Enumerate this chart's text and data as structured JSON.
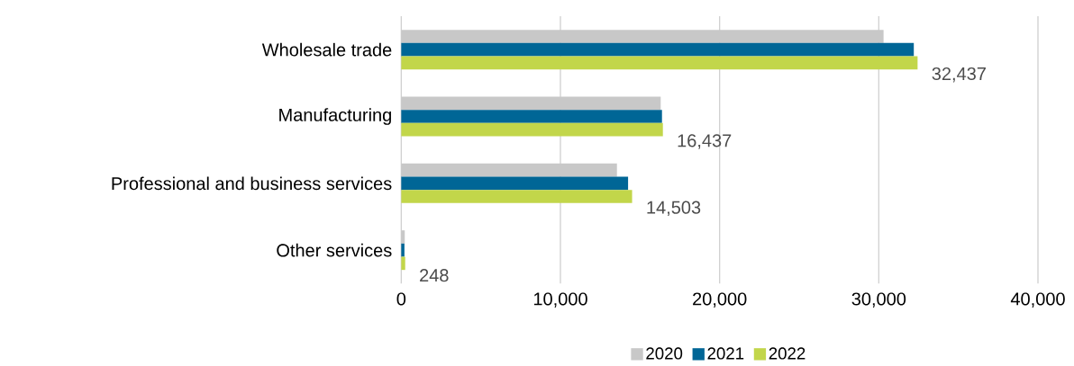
{
  "chart_data": {
    "type": "bar",
    "orientation": "horizontal",
    "categories": [
      "Wholesale trade",
      "Manufacturing",
      "Professional and business services",
      "Other services"
    ],
    "series": [
      {
        "name": "2020",
        "color": "#c8c8c8",
        "values": [
          30300,
          16300,
          13550,
          220
        ]
      },
      {
        "name": "2021",
        "color": "#006696",
        "values": [
          32200,
          16380,
          14250,
          200
        ]
      },
      {
        "name": "2022",
        "color": "#c2d64a",
        "values": [
          32437,
          16437,
          14503,
          248
        ],
        "value_labels": [
          "32,437",
          "16,437",
          "14,503",
          "248"
        ]
      }
    ],
    "xlim": [
      0,
      40000
    ],
    "xticks": [
      0,
      {
        "value": 10000,
        "label": "10,000"
      },
      {
        "value": 20000,
        "label": "20,000"
      },
      {
        "value": 30000,
        "label": "30,000"
      },
      {
        "value": 40000,
        "label": "40,000"
      }
    ],
    "grid": "x",
    "legend": "bottom"
  }
}
